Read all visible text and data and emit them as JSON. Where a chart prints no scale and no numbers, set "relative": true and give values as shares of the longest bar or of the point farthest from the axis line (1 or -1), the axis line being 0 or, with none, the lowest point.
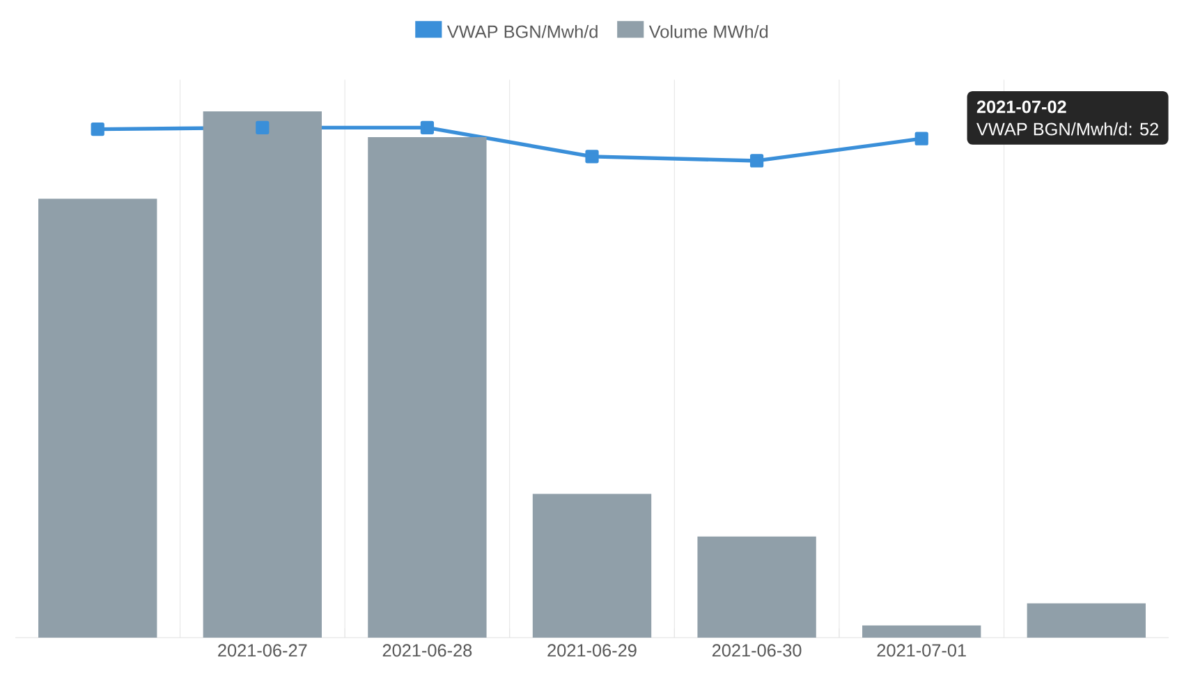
{
  "chart_data": {
    "type": "bar",
    "relative": true,
    "legend": "top",
    "grid": "x",
    "categories": [
      null,
      "2021-06-27",
      "2021-06-28",
      "2021-06-29",
      "2021-06-30",
      "2021-07-01",
      null
    ],
    "series": [
      {
        "name": "VWAP BGN/Mwh/d",
        "type": "line",
        "color": "#3a8fd9",
        "marker": "square",
        "line_style": "solid",
        "values": [
          0.966,
          0.969,
          0.969,
          0.914,
          0.906,
          0.948,
          null
        ]
      },
      {
        "name": "Volume MWh/d",
        "color": "#909fa9",
        "values": [
          0.834,
          1,
          0.951,
          0.273,
          0.192,
          0.023,
          0.065
        ]
      }
    ],
    "annotations": [
      "2021-07-02",
      "VWAP BGN/Mwh/d: 52"
    ]
  }
}
